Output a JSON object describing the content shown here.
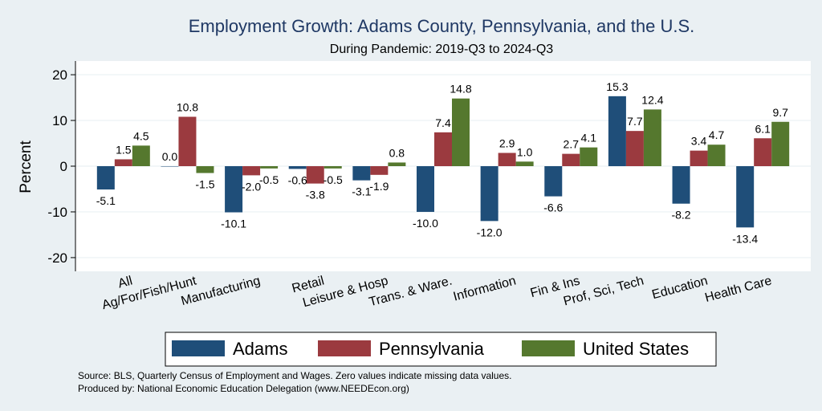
{
  "chart_data": {
    "type": "bar",
    "title": "Employment Growth: Adams County, Pennsylvania, and the U.S.",
    "subtitle": "During Pandemic: 2019-Q3 to 2024-Q3",
    "ylabel": "Percent",
    "ylim": [
      -23,
      23
    ],
    "yticks": [
      -20,
      -10,
      0,
      10,
      20
    ],
    "grid": true,
    "legend_position": "bottom",
    "categories": [
      "All",
      "Ag/For/Fish/Hunt",
      "Manufacturing",
      "Retail",
      "Leisure & Hosp",
      "Trans. & Ware.",
      "Information",
      "Fin & Ins",
      "Prof, Sci, Tech",
      "Education",
      "Health Care"
    ],
    "series": [
      {
        "name": "Adams",
        "color": "#1f4e79",
        "values": [
          -5.1,
          0.0,
          -10.1,
          -0.6,
          -3.1,
          -10.0,
          -12.0,
          -6.6,
          15.3,
          -8.2,
          -13.4
        ]
      },
      {
        "name": "Pennsylvania",
        "color": "#9b3a3f",
        "values": [
          1.5,
          10.8,
          -2.0,
          -3.8,
          -1.9,
          7.4,
          2.9,
          2.7,
          7.7,
          3.4,
          6.1
        ]
      },
      {
        "name": "United States",
        "color": "#55782e",
        "values": [
          4.5,
          -1.5,
          -0.5,
          -0.5,
          0.8,
          14.8,
          1.0,
          4.1,
          12.4,
          4.7,
          9.7
        ]
      }
    ],
    "source_note": "Source: BLS, Quarterly Census of Employment and Wages. Zero values indicate missing data values.",
    "produced_note": "Produced by: National Economic Education Delegation (www.NEEDEcon.org)"
  }
}
